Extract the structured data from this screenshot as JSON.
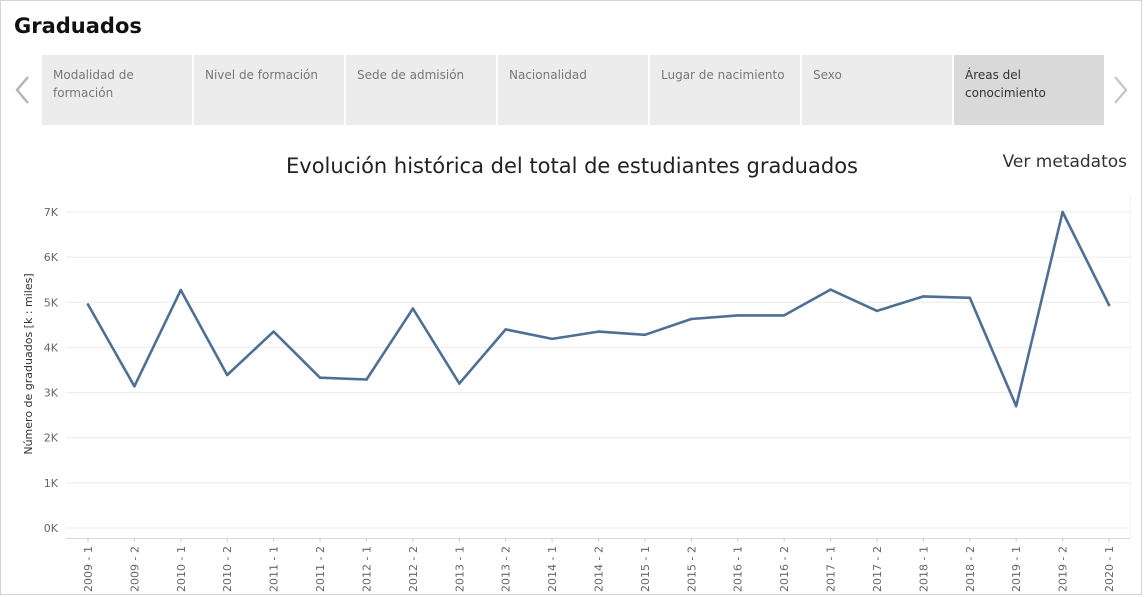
{
  "page": {
    "title": "Graduados"
  },
  "tabs": [
    {
      "label": "Modalidad de\nformación",
      "active": false
    },
    {
      "label": "Nivel de formación",
      "active": false
    },
    {
      "label": "Sede de admisión",
      "active": false
    },
    {
      "label": "Nacionalidad",
      "active": false
    },
    {
      "label": "Lugar de nacimiento",
      "active": false
    },
    {
      "label": "Sexo",
      "active": false
    },
    {
      "label": "Áreas del\nconocimiento",
      "active": true
    }
  ],
  "metadata_link": "Ver metadatos",
  "colors": {
    "line": "#4e6f96",
    "grid": "#ececec"
  },
  "chart_data": {
    "type": "line",
    "title": "Evolución histórica del total de estudiantes graduados",
    "xlabel": "",
    "ylabel": "Número de graduados [k : miles]",
    "ylim": [
      0,
      7000
    ],
    "y_ticks": [
      {
        "value": 0,
        "label": "0K"
      },
      {
        "value": 1000,
        "label": "1K"
      },
      {
        "value": 2000,
        "label": "2K"
      },
      {
        "value": 3000,
        "label": "3K"
      },
      {
        "value": 4000,
        "label": "4K"
      },
      {
        "value": 5000,
        "label": "5K"
      },
      {
        "value": 6000,
        "label": "6K"
      },
      {
        "value": 7000,
        "label": "7K"
      }
    ],
    "grid": true,
    "categories": [
      "2009 - 1",
      "2009 - 2",
      "2010 - 1",
      "2010 - 2",
      "2011 - 1",
      "2011 - 2",
      "2012 - 1",
      "2012 - 2",
      "2013 - 1",
      "2013 - 2",
      "2014 - 1",
      "2014 - 2",
      "2015 - 1",
      "2015 - 2",
      "2016 - 1",
      "2016 - 2",
      "2017 - 1",
      "2017 - 2",
      "2018 - 1",
      "2018 - 2",
      "2019 - 1",
      "2019 - 2",
      "2020 - 1"
    ],
    "series": [
      {
        "values": [
          4950,
          3140,
          5270,
          3390,
          4350,
          3330,
          3290,
          4860,
          3200,
          4400,
          4190,
          4350,
          4280,
          4630,
          4710,
          4710,
          5280,
          4810,
          5130,
          5100,
          2700,
          7000,
          4940
        ]
      }
    ]
  }
}
